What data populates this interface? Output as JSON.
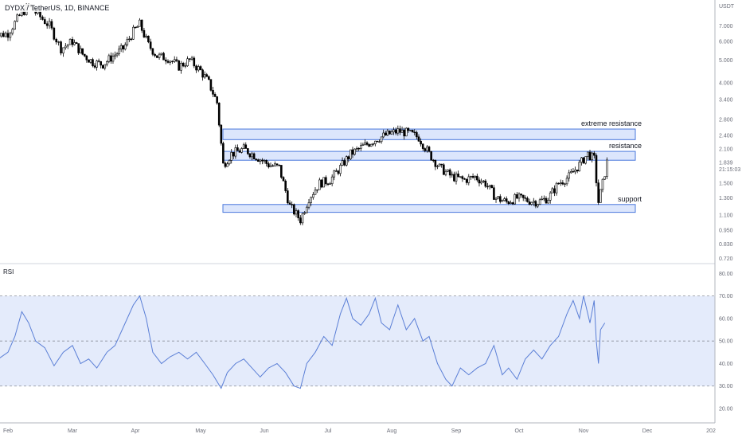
{
  "header": {
    "symbol_title": "DYDX / TetherUS, 1D, BINANCE"
  },
  "price_axis": {
    "unit": "USDT",
    "ticks": [
      "7.000",
      "6.000",
      "5.000",
      "4.000",
      "3.400",
      "2.800",
      "2.400",
      "2.100",
      "1.839",
      "1.500",
      "1.300",
      "1.100",
      "0.950",
      "0.830",
      "0.720"
    ],
    "current_price": "1.839",
    "countdown": "21:15:03"
  },
  "rsi_panel": {
    "label": "RSI",
    "ticks": [
      "80.00",
      "70.00",
      "60.00",
      "50.00",
      "40.00",
      "30.00",
      "20.00"
    ]
  },
  "time_axis": {
    "ticks": [
      "Feb",
      "Mar",
      "Apr",
      "May",
      "Jun",
      "Jul",
      "Aug",
      "Sep",
      "Oct",
      "Nov",
      "Dec",
      "202"
    ]
  },
  "zones": [
    {
      "label": "extreme resistance",
      "low": 2.3,
      "high": 2.55
    },
    {
      "label": "resistance",
      "low": 1.88,
      "high": 2.05
    },
    {
      "label": "support",
      "low": 1.13,
      "high": 1.22
    }
  ],
  "colors": {
    "candle": "#000000",
    "zone_fill": "#d6e2fb",
    "zone_border": "#4a78dc",
    "rsi_line": "#5b7fd6",
    "rsi_band": "#e4ebfb"
  },
  "chart_data": [
    {
      "type": "candlestick",
      "title": "DYDX / TetherUS, 1D, BINANCE",
      "ylabel": "USDT",
      "y_scale": "log",
      "ylim": [
        0.69,
        9.0
      ],
      "x_ticks": [
        "Feb",
        "Mar",
        "Apr",
        "May",
        "Jun",
        "Jul",
        "Aug",
        "Sep",
        "Oct",
        "Nov",
        "Dec",
        "202"
      ],
      "close_path": [
        {
          "date": "Jan 25",
          "close": 6.3
        },
        {
          "date": "Feb 1",
          "close": 6.5
        },
        {
          "date": "Feb 6",
          "close": 7.7
        },
        {
          "date": "Feb 10",
          "close": 8.5
        },
        {
          "date": "Feb 14",
          "close": 7.8
        },
        {
          "date": "Feb 19",
          "close": 7.0
        },
        {
          "date": "Feb 24",
          "close": 5.6
        },
        {
          "date": "Mar 1",
          "close": 6.0
        },
        {
          "date": "Mar 6",
          "close": 5.3
        },
        {
          "date": "Mar 11",
          "close": 4.9
        },
        {
          "date": "Mar 16",
          "close": 4.8
        },
        {
          "date": "Mar 21",
          "close": 5.2
        },
        {
          "date": "Mar 26",
          "close": 5.6
        },
        {
          "date": "Mar 31",
          "close": 6.6
        },
        {
          "date": "Apr 3",
          "close": 7.1
        },
        {
          "date": "Apr 7",
          "close": 5.8
        },
        {
          "date": "Apr 11",
          "close": 5.2
        },
        {
          "date": "Apr 16",
          "close": 5.1
        },
        {
          "date": "Apr 21",
          "close": 4.7
        },
        {
          "date": "Apr 26",
          "close": 5.0
        },
        {
          "date": "May 1",
          "close": 4.5
        },
        {
          "date": "May 5",
          "close": 4.0
        },
        {
          "date": "May 9",
          "close": 3.3
        },
        {
          "date": "May 12",
          "close": 1.8
        },
        {
          "date": "May 16",
          "close": 2.0
        },
        {
          "date": "May 22",
          "close": 2.1
        },
        {
          "date": "May 28",
          "close": 1.95
        },
        {
          "date": "Jun 3",
          "close": 1.8
        },
        {
          "date": "Jun 8",
          "close": 1.75
        },
        {
          "date": "Jun 13",
          "close": 1.2
        },
        {
          "date": "Jun 18",
          "close": 1.05
        },
        {
          "date": "Jun 22",
          "close": 1.3
        },
        {
          "date": "Jun 27",
          "close": 1.5
        },
        {
          "date": "Jul 2",
          "close": 1.55
        },
        {
          "date": "Jul 7",
          "close": 1.75
        },
        {
          "date": "Jul 12",
          "close": 2.0
        },
        {
          "date": "Jul 18",
          "close": 2.15
        },
        {
          "date": "Jul 24",
          "close": 2.3
        },
        {
          "date": "Jul 29",
          "close": 2.4
        },
        {
          "date": "Aug 4",
          "close": 2.5
        },
        {
          "date": "Aug 9",
          "close": 2.45
        },
        {
          "date": "Aug 14",
          "close": 2.35
        },
        {
          "date": "Aug 19",
          "close": 2.0
        },
        {
          "date": "Aug 24",
          "close": 1.75
        },
        {
          "date": "Aug 30",
          "close": 1.6
        },
        {
          "date": "Sep 5",
          "close": 1.55
        },
        {
          "date": "Sep 10",
          "close": 1.6
        },
        {
          "date": "Sep 15",
          "close": 1.5
        },
        {
          "date": "Sep 20",
          "close": 1.3
        },
        {
          "date": "Sep 25",
          "close": 1.25
        },
        {
          "date": "Sep 30",
          "close": 1.3
        },
        {
          "date": "Oct 5",
          "close": 1.27
        },
        {
          "date": "Oct 10",
          "close": 1.25
        },
        {
          "date": "Oct 15",
          "close": 1.3
        },
        {
          "date": "Oct 20",
          "close": 1.5
        },
        {
          "date": "Oct 25",
          "close": 1.6
        },
        {
          "date": "Oct 30",
          "close": 1.8
        },
        {
          "date": "Nov 3",
          "close": 2.0
        },
        {
          "date": "Nov 6",
          "close": 1.9
        },
        {
          "date": "Nov 8",
          "close": 1.25
        },
        {
          "date": "Nov 10",
          "close": 1.5
        },
        {
          "date": "Nov 12",
          "close": 1.839
        }
      ]
    },
    {
      "type": "line",
      "title": "RSI",
      "ylim": [
        14,
        84
      ],
      "y_ticks": [
        80,
        70,
        60,
        50,
        40,
        30,
        20
      ],
      "bands": [
        30,
        50,
        70
      ],
      "series": [
        {
          "points": [
            {
              "date": "Jan 25",
              "value": 40
            },
            {
              "date": "Feb 1",
              "value": 45
            },
            {
              "date": "Feb 4",
              "value": 52
            },
            {
              "date": "Feb 7",
              "value": 63
            },
            {
              "date": "Feb 10",
              "value": 58
            },
            {
              "date": "Feb 13",
              "value": 50
            },
            {
              "date": "Feb 17",
              "value": 47
            },
            {
              "date": "Feb 21",
              "value": 39
            },
            {
              "date": "Feb 25",
              "value": 45
            },
            {
              "date": "Mar 1",
              "value": 48
            },
            {
              "date": "Mar 5",
              "value": 40
            },
            {
              "date": "Mar 9",
              "value": 42
            },
            {
              "date": "Mar 13",
              "value": 38
            },
            {
              "date": "Mar 18",
              "value": 45
            },
            {
              "date": "Mar 22",
              "value": 48
            },
            {
              "date": "Mar 27",
              "value": 58
            },
            {
              "date": "Mar 31",
              "value": 66
            },
            {
              "date": "Apr 3",
              "value": 70
            },
            {
              "date": "Apr 6",
              "value": 60
            },
            {
              "date": "Apr 9",
              "value": 45
            },
            {
              "date": "Apr 13",
              "value": 40
            },
            {
              "date": "Apr 17",
              "value": 43
            },
            {
              "date": "Apr 21",
              "value": 45
            },
            {
              "date": "Apr 25",
              "value": 42
            },
            {
              "date": "Apr 29",
              "value": 45
            },
            {
              "date": "May 3",
              "value": 40
            },
            {
              "date": "May 7",
              "value": 35
            },
            {
              "date": "May 11",
              "value": 29
            },
            {
              "date": "May 14",
              "value": 36
            },
            {
              "date": "May 18",
              "value": 40
            },
            {
              "date": "May 22",
              "value": 42
            },
            {
              "date": "May 26",
              "value": 38
            },
            {
              "date": "May 30",
              "value": 34
            },
            {
              "date": "Jun 3",
              "value": 38
            },
            {
              "date": "Jun 7",
              "value": 40
            },
            {
              "date": "Jun 11",
              "value": 36
            },
            {
              "date": "Jun 15",
              "value": 30
            },
            {
              "date": "Jun 18",
              "value": 29
            },
            {
              "date": "Jun 21",
              "value": 40
            },
            {
              "date": "Jun 25",
              "value": 45
            },
            {
              "date": "Jun 29",
              "value": 52
            },
            {
              "date": "Jul 3",
              "value": 48
            },
            {
              "date": "Jul 7",
              "value": 62
            },
            {
              "date": "Jul 10",
              "value": 69
            },
            {
              "date": "Jul 13",
              "value": 60
            },
            {
              "date": "Jul 17",
              "value": 57
            },
            {
              "date": "Jul 21",
              "value": 62
            },
            {
              "date": "Jul 24",
              "value": 69
            },
            {
              "date": "Jul 27",
              "value": 58
            },
            {
              "date": "Jul 31",
              "value": 55
            },
            {
              "date": "Aug 4",
              "value": 66
            },
            {
              "date": "Aug 8",
              "value": 55
            },
            {
              "date": "Aug 12",
              "value": 60
            },
            {
              "date": "Aug 16",
              "value": 50
            },
            {
              "date": "Aug 19",
              "value": 52
            },
            {
              "date": "Aug 23",
              "value": 40
            },
            {
              "date": "Aug 27",
              "value": 33
            },
            {
              "date": "Aug 30",
              "value": 30
            },
            {
              "date": "Sep 3",
              "value": 38
            },
            {
              "date": "Sep 7",
              "value": 35
            },
            {
              "date": "Sep 11",
              "value": 38
            },
            {
              "date": "Sep 15",
              "value": 40
            },
            {
              "date": "Sep 19",
              "value": 48
            },
            {
              "date": "Sep 23",
              "value": 35
            },
            {
              "date": "Sep 26",
              "value": 38
            },
            {
              "date": "Sep 30",
              "value": 33
            },
            {
              "date": "Oct 4",
              "value": 42
            },
            {
              "date": "Oct 8",
              "value": 46
            },
            {
              "date": "Oct 12",
              "value": 42
            },
            {
              "date": "Oct 16",
              "value": 48
            },
            {
              "date": "Oct 20",
              "value": 52
            },
            {
              "date": "Oct 24",
              "value": 62
            },
            {
              "date": "Oct 27",
              "value": 68
            },
            {
              "date": "Oct 30",
              "value": 60
            },
            {
              "date": "Nov 1",
              "value": 70
            },
            {
              "date": "Nov 4",
              "value": 58
            },
            {
              "date": "Nov 6",
              "value": 68
            },
            {
              "date": "Nov 7",
              "value": 50
            },
            {
              "date": "Nov 8",
              "value": 40
            },
            {
              "date": "Nov 9",
              "value": 55
            },
            {
              "date": "Nov 11",
              "value": 58
            }
          ]
        }
      ]
    }
  ]
}
